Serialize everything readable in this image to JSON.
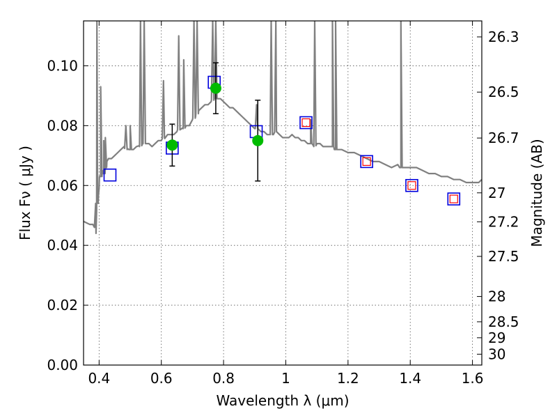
{
  "chart_data": {
    "type": "scatter",
    "xlabel": "Wavelength  λ (μm)",
    "ylabel": "Flux  Fν  ( μJy )",
    "ylabel_right": "Magnitude (AB)",
    "xlim": [
      0.35,
      1.63
    ],
    "ylim": [
      0.0,
      0.115
    ],
    "grid": true,
    "x_ticks": [
      0.4,
      0.6,
      0.8,
      1.0,
      1.2,
      1.4,
      1.6
    ],
    "x_tick_labels": [
      "0.4",
      "0.6",
      "0.8",
      "1",
      "1.2",
      "1.4",
      "1.6"
    ],
    "y_ticks": [
      0.0,
      0.02,
      0.04,
      0.06,
      0.08,
      0.1
    ],
    "y_tick_labels": [
      "0.00",
      "0.02",
      "0.04",
      "0.06",
      "0.08",
      "0.10"
    ],
    "right_ticks": [
      {
        "label": "26.3",
        "mag": 26.3
      },
      {
        "label": "26.5",
        "mag": 26.5
      },
      {
        "label": "26.7",
        "mag": 26.7
      },
      {
        "label": "27",
        "mag": 27.0
      },
      {
        "label": "27.2",
        "mag": 27.2
      },
      {
        "label": "27.5",
        "mag": 27.5
      },
      {
        "label": "28",
        "mag": 28.0
      },
      {
        "label": "28.5",
        "mag": 28.5
      },
      {
        "label": "29",
        "mag": 29.0
      },
      {
        "label": "30",
        "mag": 30.0
      }
    ],
    "colors": {
      "template": "#808080",
      "observed": "#00bb00",
      "model_box": "#0000dd",
      "predicted": "#ff0000",
      "errorbar": "#000000",
      "grid": "#555555"
    },
    "series": [
      {
        "kind": "template_line",
        "x": [
          0.35,
          0.36,
          0.37,
          0.38,
          0.385,
          0.39,
          0.392,
          0.395,
          0.398,
          0.4,
          0.405,
          0.41,
          0.415,
          0.42,
          0.425,
          0.43,
          0.44,
          0.45,
          0.46,
          0.47,
          0.48,
          0.49,
          0.5,
          0.51,
          0.52,
          0.53,
          0.54,
          0.55,
          0.56,
          0.57,
          0.58,
          0.59,
          0.6,
          0.61,
          0.62,
          0.63,
          0.64,
          0.65,
          0.66,
          0.67,
          0.68,
          0.69,
          0.7,
          0.71,
          0.72,
          0.73,
          0.74,
          0.75,
          0.76,
          0.77,
          0.78,
          0.79,
          0.8,
          0.81,
          0.82,
          0.83,
          0.84,
          0.85,
          0.86,
          0.87,
          0.88,
          0.89,
          0.9,
          0.91,
          0.92,
          0.93,
          0.94,
          0.95,
          0.96,
          0.97,
          0.98,
          0.99,
          1.0,
          1.01,
          1.02,
          1.03,
          1.04,
          1.05,
          1.06,
          1.07,
          1.08,
          1.09,
          1.1,
          1.11,
          1.12,
          1.13,
          1.14,
          1.15,
          1.16,
          1.17,
          1.18,
          1.2,
          1.22,
          1.24,
          1.26,
          1.28,
          1.3,
          1.32,
          1.34,
          1.36,
          1.37,
          1.38,
          1.4,
          1.42,
          1.44,
          1.46,
          1.48,
          1.5,
          1.52,
          1.54,
          1.56,
          1.58,
          1.6,
          1.62,
          1.63
        ],
        "y": [
          0.048,
          0.0475,
          0.047,
          0.047,
          0.046,
          0.044,
          0.052,
          0.058,
          0.057,
          0.059,
          0.063,
          0.065,
          0.064,
          0.066,
          0.068,
          0.069,
          0.069,
          0.07,
          0.071,
          0.072,
          0.073,
          0.072,
          0.072,
          0.072,
          0.073,
          0.073,
          0.074,
          0.074,
          0.074,
          0.073,
          0.074,
          0.075,
          0.075,
          0.076,
          0.077,
          0.077,
          0.077,
          0.078,
          0.079,
          0.079,
          0.08,
          0.08,
          0.082,
          0.083,
          0.085,
          0.086,
          0.087,
          0.087,
          0.088,
          0.089,
          0.089,
          0.089,
          0.088,
          0.087,
          0.086,
          0.086,
          0.085,
          0.084,
          0.083,
          0.082,
          0.081,
          0.08,
          0.079,
          0.079,
          0.078,
          0.078,
          0.077,
          0.077,
          0.077,
          0.078,
          0.077,
          0.076,
          0.076,
          0.076,
          0.077,
          0.076,
          0.076,
          0.075,
          0.075,
          0.074,
          0.074,
          0.073,
          0.074,
          0.074,
          0.073,
          0.073,
          0.073,
          0.073,
          0.072,
          0.072,
          0.072,
          0.071,
          0.071,
          0.07,
          0.069,
          0.068,
          0.068,
          0.067,
          0.066,
          0.067,
          0.066,
          0.066,
          0.066,
          0.066,
          0.065,
          0.064,
          0.064,
          0.063,
          0.063,
          0.062,
          0.062,
          0.061,
          0.061,
          0.061,
          0.062
        ],
        "emission_lines": [
          {
            "x": 0.393,
            "peak": 0.115
          },
          {
            "x": 0.405,
            "peak": 0.093
          },
          {
            "x": 0.415,
            "peak": 0.075
          },
          {
            "x": 0.42,
            "peak": 0.076
          },
          {
            "x": 0.486,
            "peak": 0.08
          },
          {
            "x": 0.5,
            "peak": 0.08
          },
          {
            "x": 0.533,
            "peak": 0.115
          },
          {
            "x": 0.545,
            "peak": 0.115
          },
          {
            "x": 0.607,
            "peak": 0.095
          },
          {
            "x": 0.656,
            "peak": 0.11
          },
          {
            "x": 0.672,
            "peak": 0.102
          },
          {
            "x": 0.705,
            "peak": 0.115
          },
          {
            "x": 0.715,
            "peak": 0.115
          },
          {
            "x": 0.765,
            "peak": 0.115
          },
          {
            "x": 0.775,
            "peak": 0.115
          },
          {
            "x": 0.906,
            "peak": 0.087
          },
          {
            "x": 0.953,
            "peak": 0.115
          },
          {
            "x": 0.968,
            "peak": 0.115
          },
          {
            "x": 1.08,
            "peak": 0.082
          },
          {
            "x": 1.093,
            "peak": 0.115
          },
          {
            "x": 1.15,
            "peak": 0.115
          },
          {
            "x": 1.16,
            "peak": 0.115
          },
          {
            "x": 1.37,
            "peak": 0.115
          }
        ]
      },
      {
        "kind": "observed",
        "x": [
          0.635,
          0.775,
          0.91
        ],
        "y": [
          0.0735,
          0.0925,
          0.075
        ],
        "yerr": [
          0.007,
          0.0085,
          0.0135
        ]
      },
      {
        "kind": "model_boxes",
        "x": [
          0.435,
          0.635,
          0.77,
          0.905,
          1.065,
          1.26,
          1.405,
          1.54
        ],
        "y": [
          0.0635,
          0.0725,
          0.0945,
          0.078,
          0.081,
          0.068,
          0.06,
          0.0555
        ]
      },
      {
        "kind": "predicted_boxes",
        "x": [
          1.065,
          1.26,
          1.405,
          1.54
        ],
        "y": [
          0.081,
          0.068,
          0.06,
          0.0555
        ]
      }
    ]
  }
}
